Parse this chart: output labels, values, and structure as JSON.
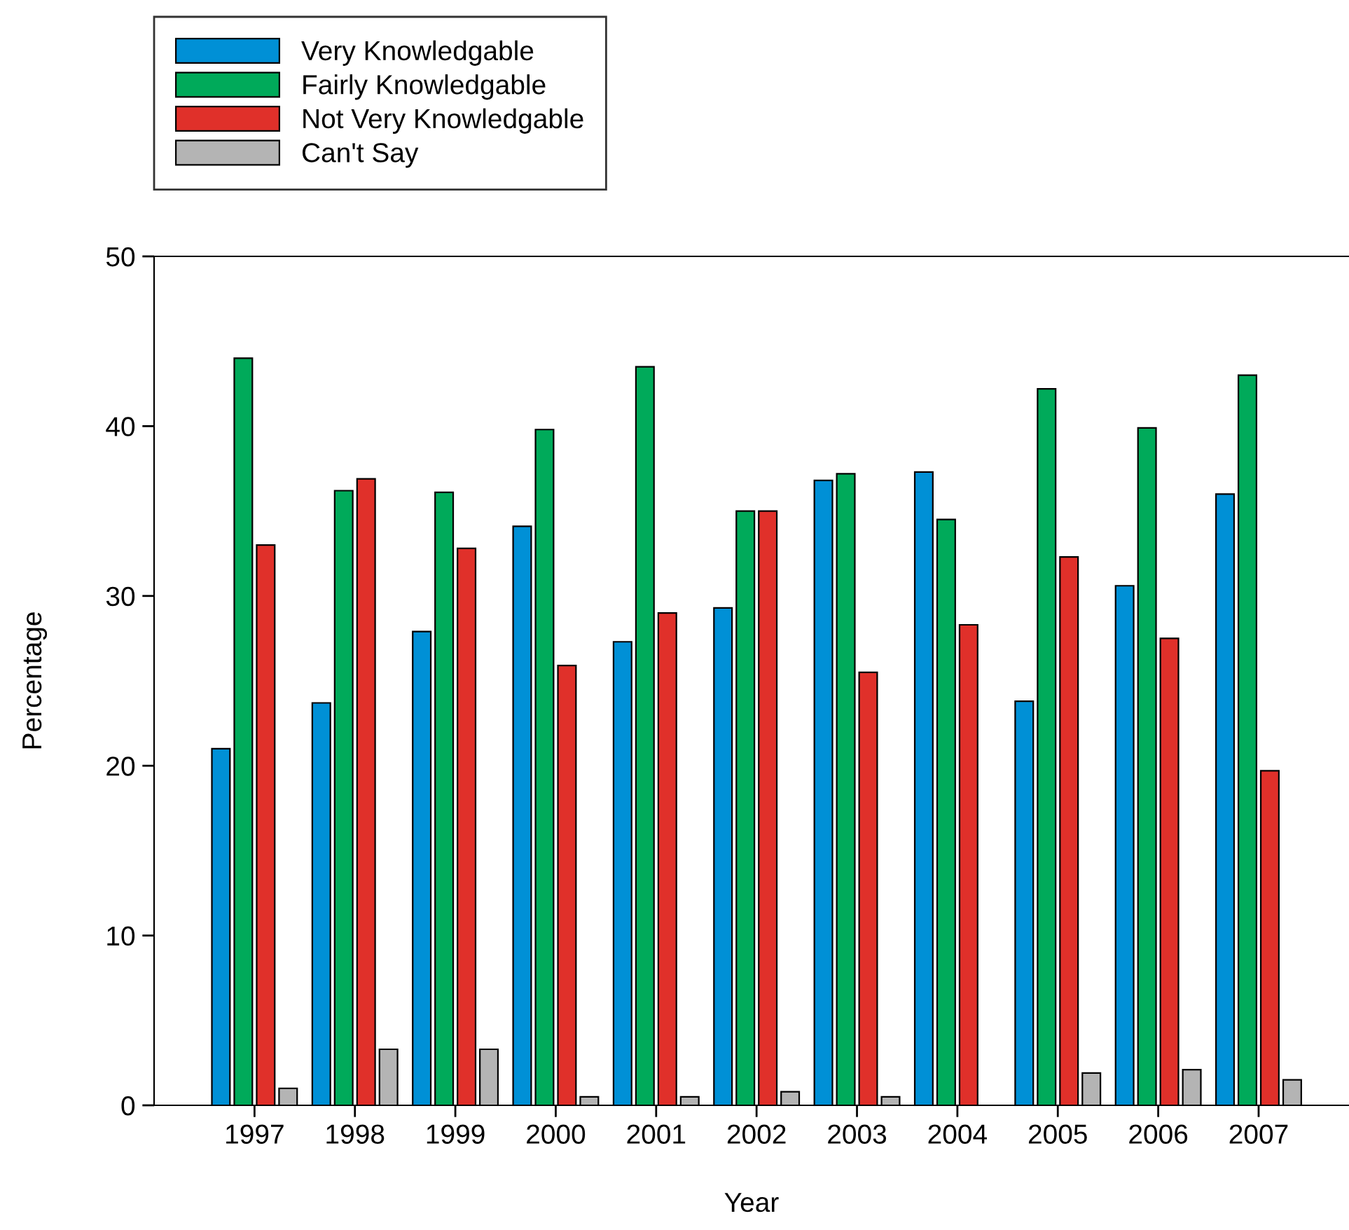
{
  "chart_data": {
    "type": "bar",
    "xlabel": "Year",
    "ylabel": "Percentage",
    "categories": [
      "1997",
      "1998",
      "1999",
      "2000",
      "2001",
      "2002",
      "2003",
      "2004",
      "2005",
      "2006",
      "2007"
    ],
    "series": [
      {
        "name": "Very Knowledgable",
        "color": "#0090d6",
        "values": [
          21.0,
          23.7,
          27.9,
          34.1,
          27.3,
          29.3,
          36.8,
          37.3,
          23.8,
          30.6,
          36.0
        ]
      },
      {
        "name": "Fairly Knowledgable",
        "color": "#00aa5a",
        "values": [
          44.0,
          36.2,
          36.1,
          39.8,
          43.5,
          35.0,
          37.2,
          34.5,
          42.2,
          39.9,
          43.0
        ]
      },
      {
        "name": "Not Very Knowledgable",
        "color": "#e0302a",
        "values": [
          33.0,
          36.9,
          32.8,
          25.9,
          29.0,
          35.0,
          25.5,
          28.3,
          32.3,
          27.5,
          19.7
        ]
      },
      {
        "name": "Can't Say",
        "color": "#b4b4b4",
        "values": [
          1.0,
          3.3,
          3.3,
          0.5,
          0.5,
          0.8,
          0.5,
          null,
          1.9,
          2.1,
          1.5
        ]
      }
    ],
    "ylim": [
      0,
      50
    ],
    "yticks": [
      0,
      10,
      20,
      30,
      40,
      50
    ],
    "grid": false,
    "legend": "top left"
  }
}
